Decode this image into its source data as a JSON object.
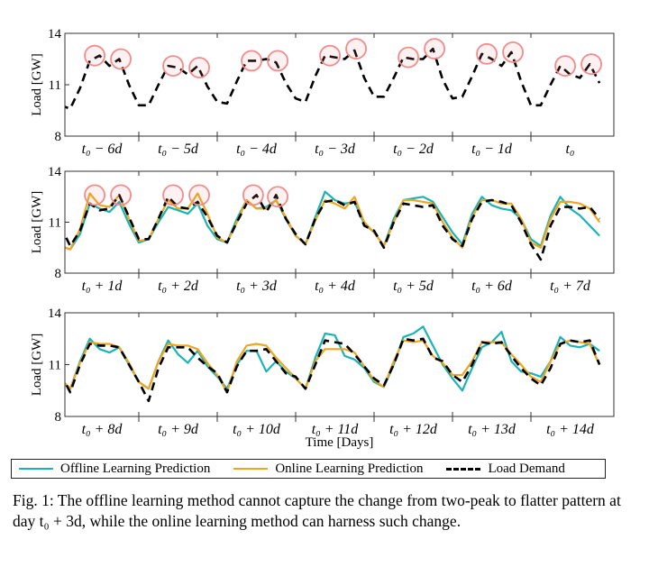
{
  "legend": {
    "offline": "Offline Learning Prediction",
    "online": "Online Learning Prediction",
    "load": "Load Demand"
  },
  "caption": "Fig. 1: The offline learning method cannot capture the change from two-peak to flatter pattern at day t₀ + 3d, while the online learning method can harness such change.",
  "colors": {
    "offline": "#1db3b6",
    "online": "#f0a51e",
    "load": "#000000",
    "highlight": "#f28b8b"
  },
  "chart_data": [
    {
      "type": "line",
      "ylabel": "Load [GW]",
      "xlabel": "",
      "ylim": [
        8,
        14
      ],
      "yticks": [
        8,
        11,
        14
      ],
      "grid": false,
      "hours": [
        0,
        3,
        6,
        9,
        12,
        15,
        18,
        21
      ],
      "categories": [
        "t₀ − 6d",
        "t₀ − 5d",
        "t₀ − 4d",
        "t₀ − 3d",
        "t₀ − 2d",
        "t₀ − 1d",
        "t₀"
      ],
      "series": [
        {
          "key": "load",
          "values": [
            [
              9.8,
              9.6,
              10.8,
              12.4,
              12.7,
              12.1,
              12.5,
              11.0
            ],
            [
              9.8,
              9.8,
              11.0,
              12.1,
              12.0,
              11.6,
              12.1,
              10.9
            ],
            [
              10.0,
              9.9,
              11.2,
              12.4,
              12.4,
              12.5,
              12.3,
              11.1
            ],
            [
              10.2,
              10.0,
              11.5,
              12.7,
              12.6,
              12.5,
              13.0,
              11.4
            ],
            [
              10.3,
              10.3,
              11.4,
              12.6,
              12.5,
              12.5,
              13.1,
              11.3
            ],
            [
              10.2,
              10.3,
              11.5,
              12.8,
              12.5,
              12.1,
              12.9,
              11.2
            ],
            [
              9.8,
              9.8,
              11.0,
              12.1,
              11.6,
              11.4,
              12.2,
              11.1
            ]
          ]
        }
      ],
      "highlighted_peaks": [
        [
          0,
          10.5,
          12.7
        ],
        [
          0,
          18.5,
          12.5
        ],
        [
          1,
          10.5,
          12.1
        ],
        [
          1,
          18.5,
          12.0
        ],
        [
          2,
          10.5,
          12.4
        ],
        [
          2,
          18.5,
          12.4
        ],
        [
          3,
          10.5,
          12.7
        ],
        [
          3,
          18.5,
          13.1
        ],
        [
          4,
          10.5,
          12.6
        ],
        [
          4,
          18.5,
          13.1
        ],
        [
          5,
          10.5,
          12.8
        ],
        [
          5,
          18.5,
          12.9
        ],
        [
          6,
          10.5,
          12.1
        ],
        [
          6,
          18.5,
          12.2
        ]
      ]
    },
    {
      "type": "line",
      "ylabel": "Load [GW]",
      "xlabel": "",
      "ylim": [
        8,
        14
      ],
      "yticks": [
        8,
        11,
        14
      ],
      "grid": false,
      "hours": [
        0,
        3,
        6,
        9,
        12,
        15,
        18,
        21
      ],
      "categories": [
        "t₀ + 1d",
        "t₀ + 2d",
        "t₀ + 3d",
        "t₀ + 4d",
        "t₀ + 5d",
        "t₀ + 6d",
        "t₀ + 7d"
      ],
      "series": [
        {
          "key": "offline",
          "values": [
            [
              9.6,
              9.4,
              10.3,
              12.1,
              11.8,
              11.6,
              12.2,
              10.9
            ],
            [
              9.8,
              10.0,
              11.0,
              11.9,
              11.7,
              11.5,
              12.1,
              10.8
            ],
            [
              10.0,
              9.8,
              11.2,
              12.3,
              11.8,
              11.9,
              12.3,
              11.2
            ],
            [
              10.2,
              9.7,
              11.3,
              12.8,
              12.3,
              12.1,
              12.2,
              10.9
            ],
            [
              10.4,
              9.6,
              11.2,
              12.3,
              12.4,
              12.5,
              12.2,
              11.3
            ],
            [
              10.4,
              9.7,
              11.5,
              12.5,
              12.0,
              11.8,
              11.7,
              11.2
            ],
            [
              10.0,
              9.6,
              11.4,
              12.5,
              11.8,
              11.4,
              10.8,
              10.2
            ]
          ]
        },
        {
          "key": "online",
          "values": [
            [
              9.6,
              9.4,
              10.6,
              12.7,
              12.0,
              11.9,
              12.6,
              11.2
            ],
            [
              9.9,
              10.0,
              11.2,
              12.3,
              11.8,
              11.8,
              12.7,
              11.5
            ],
            [
              10.1,
              9.8,
              11.0,
              12.3,
              11.8,
              11.8,
              12.3,
              11.3
            ],
            [
              10.2,
              9.7,
              11.1,
              12.3,
              12.1,
              11.8,
              12.5,
              11.0
            ],
            [
              10.4,
              9.6,
              11.0,
              12.3,
              12.3,
              12.2,
              12.1,
              11.0
            ],
            [
              10.1,
              9.5,
              11.3,
              12.3,
              12.3,
              12.1,
              12.1,
              11.2
            ],
            [
              9.8,
              9.5,
              11.2,
              12.2,
              12.2,
              12.1,
              11.8,
              11.0
            ]
          ]
        },
        {
          "key": "load",
          "values": [
            [
              10.8,
              9.6,
              10.5,
              12.1,
              11.7,
              11.8,
              12.6,
              11.3
            ],
            [
              10.0,
              10.0,
              11.2,
              12.5,
              11.9,
              11.8,
              12.2,
              11.3
            ],
            [
              10.2,
              9.8,
              11.0,
              12.1,
              12.6,
              11.6,
              12.6,
              11.2
            ],
            [
              10.3,
              9.7,
              11.2,
              12.2,
              12.3,
              12.0,
              12.2,
              10.8
            ],
            [
              10.5,
              9.5,
              11.0,
              12.1,
              12.0,
              11.9,
              12.0,
              10.8
            ],
            [
              10.0,
              9.6,
              11.2,
              12.2,
              12.3,
              12.2,
              12.0,
              11.0
            ],
            [
              9.7,
              8.8,
              10.8,
              11.9,
              11.9,
              11.8,
              11.9,
              11.2
            ]
          ]
        }
      ],
      "highlighted_peaks": [
        [
          0,
          10.5,
          12.6
        ],
        [
          0,
          18.5,
          12.6
        ],
        [
          1,
          10.5,
          12.6
        ],
        [
          1,
          18.5,
          12.6
        ],
        [
          2,
          11.0,
          12.6
        ],
        [
          2,
          18.5,
          12.5
        ]
      ]
    },
    {
      "type": "line",
      "ylabel": "Load [GW]",
      "xlabel": "Time [Days]",
      "ylim": [
        8,
        14
      ],
      "yticks": [
        8,
        11,
        14
      ],
      "grid": false,
      "hours": [
        0,
        3,
        6,
        9,
        12,
        15,
        18,
        21
      ],
      "categories": [
        "t₀ + 8d",
        "t₀ + 9d",
        "t₀ + 10d",
        "t₀ + 11d",
        "t₀ + 12d",
        "t₀ + 13d",
        "t₀ + 14d"
      ],
      "series": [
        {
          "key": "offline",
          "values": [
            [
              10.1,
              9.6,
              11.2,
              12.5,
              11.9,
              11.7,
              12.0,
              11.0
            ],
            [
              10.0,
              9.6,
              11.2,
              12.4,
              11.6,
              11.1,
              11.8,
              10.9
            ],
            [
              10.3,
              9.6,
              11.0,
              11.8,
              11.8,
              10.6,
              11.2,
              10.6
            ],
            [
              10.2,
              9.6,
              11.4,
              12.8,
              12.7,
              11.5,
              11.3,
              10.8
            ],
            [
              10.0,
              9.7,
              11.0,
              12.6,
              12.8,
              13.2,
              12.1,
              11.0
            ],
            [
              10.2,
              9.5,
              10.8,
              12.0,
              12.3,
              12.9,
              11.2,
              10.6
            ],
            [
              10.5,
              10.3,
              11.2,
              12.6,
              12.1,
              12.0,
              12.2,
              11.8
            ]
          ]
        },
        {
          "key": "online",
          "values": [
            [
              10.2,
              9.6,
              11.1,
              12.3,
              12.2,
              12.2,
              12.0,
              11.1
            ],
            [
              10.0,
              9.6,
              11.2,
              12.2,
              12.1,
              12.1,
              11.9,
              11.1
            ],
            [
              10.4,
              9.4,
              11.2,
              12.1,
              12.2,
              12.1,
              11.4,
              10.8
            ],
            [
              10.2,
              9.6,
              11.2,
              11.9,
              11.9,
              11.9,
              11.7,
              10.9
            ],
            [
              10.1,
              9.7,
              11.2,
              12.4,
              12.3,
              12.4,
              11.5,
              11.1
            ],
            [
              10.4,
              10.4,
              11.2,
              12.3,
              12.3,
              12.3,
              11.6,
              11.0
            ],
            [
              10.3,
              10.0,
              11.2,
              12.2,
              12.4,
              12.3,
              12.2,
              11.0
            ]
          ]
        },
        {
          "key": "load",
          "values": [
            [
              10.5,
              9.4,
              11.0,
              12.2,
              12.1,
              12.1,
              12.0,
              11.0
            ],
            [
              10.0,
              8.9,
              10.8,
              12.0,
              12.0,
              12.0,
              11.4,
              10.9
            ],
            [
              10.5,
              9.4,
              10.9,
              11.8,
              11.8,
              11.9,
              11.2,
              10.5
            ],
            [
              10.3,
              9.6,
              11.0,
              12.4,
              12.3,
              12.2,
              11.6,
              10.9
            ],
            [
              10.2,
              9.8,
              11.0,
              12.5,
              12.4,
              12.5,
              11.4,
              11.2
            ],
            [
              10.4,
              10.0,
              11.0,
              12.3,
              12.2,
              12.3,
              11.5,
              10.8
            ],
            [
              10.2,
              9.8,
              10.8,
              12.2,
              12.4,
              12.3,
              12.4,
              11.0
            ]
          ]
        }
      ],
      "highlighted_peaks": []
    }
  ]
}
